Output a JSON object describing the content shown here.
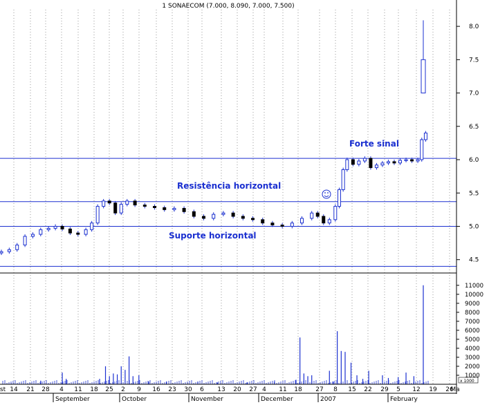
{
  "chart_data": [
    {
      "type": "candlestick",
      "title": "1 SONAECOM (7.000, 8.090, 7.000, 7.500)",
      "ylim": [
        4.3,
        8.25
      ],
      "y_ticks": [
        "4.5",
        "5.0",
        "5.5",
        "6.0",
        "6.5",
        "7.0",
        "7.5",
        "8.0"
      ],
      "grid": "vertical dotted",
      "x_day_labels": [
        "st",
        "14",
        "21",
        "28",
        "4",
        "11",
        "18",
        "25",
        "2",
        "9",
        "16",
        "23",
        "30",
        "6",
        "13",
        "20",
        "27",
        "4",
        "11",
        "18",
        "27",
        "8",
        "15",
        "22",
        "29",
        "5",
        "12",
        "19",
        "26",
        "Ma"
      ],
      "x_month_labels": [
        "September",
        "October",
        "November",
        "December",
        "2007",
        "February"
      ],
      "horizontal_lines": [
        {
          "name": "Forte sinal",
          "value": 6.02
        },
        {
          "name": "Resistência horizontal",
          "value": 5.37
        },
        {
          "name": "Suporte horizontal",
          "value": 5.0
        },
        {
          "name": "",
          "value": 4.4
        }
      ],
      "annotations": [
        "Forte sinal",
        "Resistência horizontal",
        "Suporte horizontal"
      ],
      "last_candle": {
        "open": 7.0,
        "high": 8.09,
        "low": 7.0,
        "close": 7.5
      },
      "close_path": [
        [
          0,
          4.62
        ],
        [
          8,
          4.65
        ],
        [
          16,
          4.72
        ],
        [
          24,
          4.85
        ],
        [
          32,
          4.88
        ],
        [
          40,
          4.95
        ],
        [
          48,
          4.97
        ],
        [
          55,
          5.0
        ],
        [
          62,
          4.96
        ],
        [
          70,
          4.9
        ],
        [
          78,
          4.88
        ],
        [
          86,
          4.95
        ],
        [
          92,
          5.05
        ],
        [
          98,
          5.3
        ],
        [
          104,
          5.38
        ],
        [
          110,
          5.35
        ],
        [
          116,
          5.2
        ],
        [
          122,
          5.33
        ],
        [
          128,
          5.38
        ],
        [
          136,
          5.32
        ],
        [
          146,
          5.3
        ],
        [
          156,
          5.28
        ],
        [
          166,
          5.25
        ],
        [
          176,
          5.27
        ],
        [
          186,
          5.22
        ],
        [
          196,
          5.15
        ],
        [
          206,
          5.12
        ],
        [
          216,
          5.18
        ],
        [
          226,
          5.2
        ],
        [
          236,
          5.15
        ],
        [
          246,
          5.12
        ],
        [
          256,
          5.1
        ],
        [
          266,
          5.05
        ],
        [
          276,
          5.02
        ],
        [
          286,
          5.0
        ],
        [
          296,
          5.05
        ],
        [
          306,
          5.12
        ],
        [
          316,
          5.2
        ],
        [
          322,
          5.15
        ],
        [
          328,
          5.05
        ],
        [
          334,
          5.1
        ],
        [
          340,
          5.3
        ],
        [
          344,
          5.55
        ],
        [
          348,
          5.85
        ],
        [
          352,
          6.0
        ],
        [
          358,
          5.93
        ],
        [
          364,
          5.98
        ],
        [
          370,
          6.02
        ],
        [
          376,
          5.88
        ],
        [
          382,
          5.92
        ],
        [
          388,
          5.95
        ],
        [
          394,
          5.97
        ],
        [
          400,
          5.95
        ],
        [
          406,
          5.99
        ],
        [
          412,
          6.0
        ],
        [
          418,
          5.98
        ],
        [
          424,
          6.0
        ],
        [
          428,
          6.3
        ],
        [
          432,
          6.4
        ]
      ],
      "volume": {
        "y_ticks": [
          "1000",
          "2000",
          "3000",
          "4000",
          "5000",
          "6000",
          "7000",
          "8000",
          "9000",
          "10000",
          "11000"
        ],
        "unit_label": "x 1000",
        "bars": [
          [
            10,
            100
          ],
          [
            40,
            400
          ],
          [
            62,
            1300
          ],
          [
            66,
            600
          ],
          [
            100,
            600
          ],
          [
            106,
            2000
          ],
          [
            110,
            900
          ],
          [
            114,
            1200
          ],
          [
            118,
            1100
          ],
          [
            122,
            2000
          ],
          [
            126,
            1600
          ],
          [
            130,
            3100
          ],
          [
            134,
            900
          ],
          [
            140,
            1000
          ],
          [
            150,
            300
          ],
          [
            168,
            300
          ],
          [
            200,
            300
          ],
          [
            220,
            200
          ],
          [
            250,
            200
          ],
          [
            278,
            300
          ],
          [
            300,
            500
          ],
          [
            304,
            5200
          ],
          [
            308,
            1200
          ],
          [
            312,
            900
          ],
          [
            316,
            1000
          ],
          [
            334,
            1500
          ],
          [
            338,
            300
          ],
          [
            342,
            5900
          ],
          [
            346,
            3700
          ],
          [
            350,
            3600
          ],
          [
            356,
            2400
          ],
          [
            362,
            1000
          ],
          [
            368,
            600
          ],
          [
            374,
            1500
          ],
          [
            388,
            1000
          ],
          [
            394,
            700
          ],
          [
            404,
            800
          ],
          [
            412,
            1300
          ],
          [
            420,
            900
          ],
          [
            430,
            11000
          ]
        ]
      }
    }
  ]
}
